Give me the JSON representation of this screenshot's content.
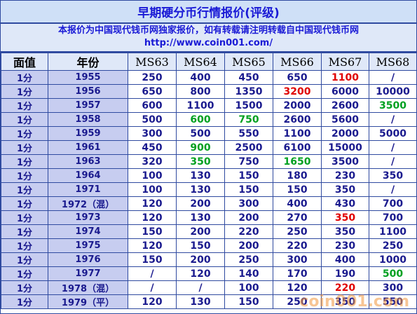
{
  "title": "早期硬分币行情报价(评级)",
  "notice_line1": "本报价为中国现代钱币网独家报价，如有转载请注明转载自中国现代钱币网",
  "notice_line2": "http://www.coin001.com/",
  "columns": [
    "面值",
    "年份",
    "MS63",
    "MS64",
    "MS65",
    "MS66",
    "MS67",
    "MS68"
  ],
  "rows": [
    {
      "denom": "1分",
      "year": "1955",
      "prices": [
        "250",
        "400",
        "450",
        "650",
        "1100",
        "/"
      ],
      "colors": [
        "",
        "",
        "",
        "",
        "red",
        ""
      ]
    },
    {
      "denom": "1分",
      "year": "1956",
      "prices": [
        "650",
        "800",
        "1350",
        "3200",
        "6000",
        "10000"
      ],
      "colors": [
        "",
        "",
        "",
        "red",
        "",
        ""
      ]
    },
    {
      "denom": "1分",
      "year": "1957",
      "prices": [
        "600",
        "1100",
        "1500",
        "2000",
        "2600",
        "3500"
      ],
      "colors": [
        "",
        "",
        "",
        "",
        "",
        "green"
      ]
    },
    {
      "denom": "1分",
      "year": "1958",
      "prices": [
        "500",
        "600",
        "750",
        "2600",
        "5600",
        "/"
      ],
      "colors": [
        "",
        "green",
        "green",
        "",
        "",
        ""
      ]
    },
    {
      "denom": "1分",
      "year": "1959",
      "prices": [
        "300",
        "500",
        "550",
        "1100",
        "2000",
        "5000"
      ],
      "colors": [
        "",
        "",
        "",
        "",
        "",
        ""
      ]
    },
    {
      "denom": "1分",
      "year": "1961",
      "prices": [
        "450",
        "900",
        "2500",
        "6100",
        "15000",
        "/"
      ],
      "colors": [
        "",
        "green",
        "",
        "",
        "",
        ""
      ]
    },
    {
      "denom": "1分",
      "year": "1963",
      "prices": [
        "320",
        "350",
        "750",
        "1650",
        "3500",
        "/"
      ],
      "colors": [
        "",
        "green",
        "",
        "green",
        "",
        ""
      ]
    },
    {
      "denom": "1分",
      "year": "1964",
      "prices": [
        "100",
        "130",
        "150",
        "180",
        "230",
        "350"
      ],
      "colors": [
        "",
        "",
        "",
        "",
        "",
        ""
      ]
    },
    {
      "denom": "1分",
      "year": "1971",
      "prices": [
        "100",
        "130",
        "150",
        "150",
        "350",
        "/"
      ],
      "colors": [
        "",
        "",
        "",
        "",
        "",
        ""
      ]
    },
    {
      "denom": "1分",
      "year": "1972（混）",
      "prices": [
        "120",
        "200",
        "300",
        "400",
        "430",
        "700"
      ],
      "colors": [
        "",
        "",
        "",
        "",
        "",
        ""
      ]
    },
    {
      "denom": "1分",
      "year": "1973",
      "prices": [
        "120",
        "130",
        "200",
        "270",
        "350",
        "700"
      ],
      "colors": [
        "",
        "",
        "",
        "",
        "red",
        ""
      ]
    },
    {
      "denom": "1分",
      "year": "1974",
      "prices": [
        "150",
        "200",
        "220",
        "250",
        "350",
        "1100"
      ],
      "colors": [
        "",
        "",
        "",
        "",
        "",
        ""
      ]
    },
    {
      "denom": "1分",
      "year": "1975",
      "prices": [
        "120",
        "150",
        "200",
        "220",
        "230",
        "250"
      ],
      "colors": [
        "",
        "",
        "",
        "",
        "",
        ""
      ]
    },
    {
      "denom": "1分",
      "year": "1976",
      "prices": [
        "150",
        "200",
        "250",
        "300",
        "400",
        "1000"
      ],
      "colors": [
        "",
        "",
        "",
        "",
        "",
        ""
      ]
    },
    {
      "denom": "1分",
      "year": "1977",
      "prices": [
        "/",
        "120",
        "140",
        "170",
        "190",
        "500"
      ],
      "colors": [
        "",
        "",
        "",
        "",
        "",
        "green"
      ]
    },
    {
      "denom": "1分",
      "year": "1978（混）",
      "prices": [
        "/",
        "/",
        "100",
        "120",
        "220",
        "300"
      ],
      "colors": [
        "",
        "",
        "",
        "",
        "red",
        ""
      ]
    },
    {
      "denom": "1分",
      "year": "1979（平）",
      "prices": [
        "120",
        "130",
        "150",
        "250",
        "350",
        "550"
      ],
      "colors": [
        "",
        "",
        "",
        "",
        "",
        ""
      ]
    }
  ],
  "watermark": "coin001.com",
  "palette": {
    "border": "#2f4aa0",
    "header_bg": "#cfe0f7",
    "label_bg": "#c7cdf0",
    "text": "#1a1a8e",
    "red": "#e00000",
    "green": "#00a020"
  }
}
